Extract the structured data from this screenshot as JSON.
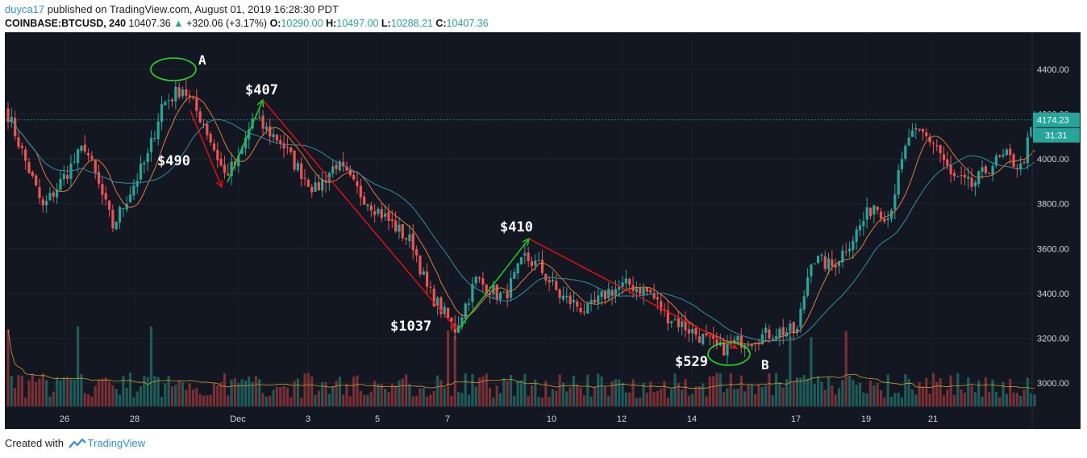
{
  "header": {
    "user": "duyca17",
    "published_text": " published on TradingView.com, August 01, 2019 16:28:30 PDT",
    "symbol": "COINBASE:BTCUSD, 240",
    "last": "10407.36",
    "change": "+320.06 (+3.17%)",
    "o_label": "O:",
    "o_val": "10290.00",
    "h_label": "H:",
    "h_val": "10497.00",
    "l_label": "L:",
    "l_val": "10288.21",
    "c_label": "C:",
    "c_val": "10407.36"
  },
  "footer": {
    "created_with": "Created with",
    "brand": "TradingView"
  },
  "colors": {
    "bg": "#131722",
    "up": "#26a69a",
    "down": "#ef5350",
    "fast_ma": "#e07b39",
    "slow_ma": "#2f8fa3",
    "arrow_up": "#22cc22",
    "arrow_down": "#dd1111",
    "annot_green": "#22dd22"
  },
  "chart_data": {
    "type": "candlestick",
    "x_tick_labels": [
      "26",
      "28",
      "Dec",
      "3",
      "5",
      "7",
      "10",
      "12",
      "14",
      "17",
      "19",
      "21"
    ],
    "y_ticks": [
      "4400.00",
      "4200.00",
      "4000.00",
      "3800.00",
      "3600.00",
      "3400.00",
      "3200.00",
      "3000.00"
    ],
    "ylim": [
      2890,
      4520
    ],
    "y_axis_side": "right",
    "last_price_label": "4174.23",
    "countdown_label": "31:31",
    "waypoints": [
      [
        0,
        4200
      ],
      [
        10,
        3780
      ],
      [
        22,
        4060
      ],
      [
        30,
        3700
      ],
      [
        40,
        4010
      ],
      [
        44,
        4240
      ],
      [
        50,
        4320
      ],
      [
        56,
        4160
      ],
      [
        62,
        3930
      ],
      [
        66,
        3990
      ],
      [
        70,
        4180
      ],
      [
        74,
        4130
      ],
      [
        78,
        4080
      ],
      [
        82,
        3980
      ],
      [
        88,
        3860
      ],
      [
        94,
        3980
      ],
      [
        100,
        3860
      ],
      [
        108,
        3740
      ],
      [
        116,
        3620
      ],
      [
        120,
        3420
      ],
      [
        128,
        3240
      ],
      [
        134,
        3460
      ],
      [
        142,
        3380
      ],
      [
        148,
        3560
      ],
      [
        152,
        3520
      ],
      [
        158,
        3390
      ],
      [
        166,
        3320
      ],
      [
        172,
        3410
      ],
      [
        178,
        3440
      ],
      [
        184,
        3400
      ],
      [
        188,
        3310
      ],
      [
        194,
        3250
      ],
      [
        204,
        3150
      ],
      [
        210,
        3190
      ],
      [
        216,
        3210
      ],
      [
        220,
        3230
      ],
      [
        226,
        3230
      ],
      [
        230,
        3560
      ],
      [
        236,
        3520
      ],
      [
        242,
        3650
      ],
      [
        248,
        3800
      ],
      [
        252,
        3740
      ],
      [
        258,
        4100
      ],
      [
        262,
        4110
      ],
      [
        266,
        4060
      ],
      [
        270,
        3920
      ],
      [
        276,
        3880
      ],
      [
        282,
        3980
      ],
      [
        286,
        4010
      ],
      [
        290,
        3960
      ],
      [
        294,
        4174
      ]
    ],
    "annotations": [
      {
        "label": "A",
        "note": "circled peak"
      },
      {
        "label": "$490"
      },
      {
        "label": "$407"
      },
      {
        "label": "$1037"
      },
      {
        "label": "$410"
      },
      {
        "label": "$529"
      },
      {
        "label": "B",
        "note": "circled low"
      }
    ]
  }
}
